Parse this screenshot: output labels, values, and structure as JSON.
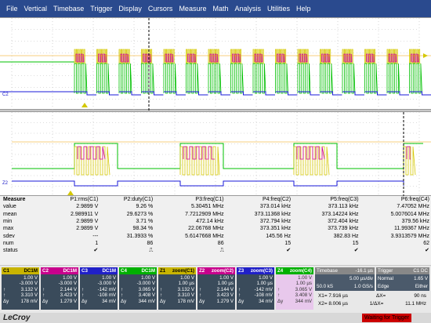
{
  "menu": [
    "File",
    "Vertical",
    "Timebase",
    "Trigger",
    "Display",
    "Cursors",
    "Measure",
    "Math",
    "Analysis",
    "Utilities",
    "Help"
  ],
  "colors": {
    "c1": "#d4c800",
    "c2": "#d0009a",
    "c3": "#1a1ad8",
    "c4": "#00c000",
    "menubar": "#2a4a8e",
    "status": "#cc0000"
  },
  "pane_markers": {
    "c2": "C2",
    "z2": "Z2"
  },
  "measure": {
    "header_label": "Measure",
    "columns": [
      "P1:rms(C1)",
      "P2:duty(C1)",
      "P3:freq(C1)",
      "P4:freq(C2)",
      "P5:freq(C3)",
      "P6:freq(C4)"
    ],
    "rows": [
      {
        "label": "value",
        "cells": [
          "2.9899 V",
          "9.26 %",
          "5.30451 MHz",
          "373.014 kHz",
          "373.113 kHz",
          "7.47052 MHz"
        ]
      },
      {
        "label": "mean",
        "cells": [
          "2.989911 V",
          "29.6273 %",
          "7.7212909 MHz",
          "373.11368 kHz",
          "373.14224 kHz",
          "5.0076014 MHz"
        ]
      },
      {
        "label": "min",
        "cells": [
          "2.9899 V",
          "3.71 %",
          "472.14 kHz",
          "372.794 kHz",
          "372.404 kHz",
          "379.56 kHz"
        ]
      },
      {
        "label": "max",
        "cells": [
          "2.9899 V",
          "98.34 %",
          "22.06768 MHz",
          "373.351 kHz",
          "373.739 kHz",
          "11.99367 MHz"
        ]
      },
      {
        "label": "sdev",
        "cells": [
          "---",
          "31.3933 %",
          "5.6147668 MHz",
          "145.56 Hz",
          "382.83 Hz",
          "3.9313579 MHz"
        ]
      },
      {
        "label": "num",
        "cells": [
          "1",
          "86",
          "86",
          "15",
          "15",
          "62"
        ]
      },
      {
        "label": "status",
        "cells": [
          "✔",
          "⎍",
          "⎍",
          "✔",
          "✔",
          "✔"
        ]
      }
    ]
  },
  "channels": [
    {
      "name": "C1",
      "tag": "DC1M",
      "head_color": "#c8b400",
      "rows": [
        "1.00 V",
        "-3.000 V",
        "3.132 V",
        "3.310 V",
        "178 mV"
      ],
      "row_labels": [
        "",
        "",
        "↑",
        "↑",
        "Δy"
      ]
    },
    {
      "name": "C2",
      "tag": "DC1M",
      "head_color": "#c8008c",
      "rows": [
        "1.00 V",
        "-3.000 V",
        "2.144 V",
        "3.423 V",
        "1.279 V"
      ],
      "row_labels": [
        "",
        "",
        "↑",
        "↑",
        "Δy"
      ]
    },
    {
      "name": "C3",
      "tag": "DC1M",
      "head_color": "#2020c8",
      "rows": [
        "1.00 V",
        "-3.000 V",
        "-142 mV",
        "-108 mV",
        "34 mV"
      ],
      "row_labels": [
        "",
        "",
        "↑",
        "↑",
        "Δy"
      ]
    },
    {
      "name": "C4",
      "tag": "DC1M",
      "head_color": "#00b000",
      "rows": [
        "1.00 V",
        "-3.000 V",
        "3.065 V",
        "3.408 V",
        "344 mV"
      ],
      "row_labels": [
        "",
        "",
        "↑",
        "↑",
        "Δy"
      ]
    },
    {
      "name": "Z1",
      "tag": "zoom(C1)",
      "head_color": "#c8b400",
      "rows": [
        "1.00 V",
        "1.00 µs",
        "3.132 V",
        "3.310 V",
        "178 mV"
      ],
      "row_labels": [
        "",
        "",
        "↑",
        "↑",
        "Δy"
      ]
    },
    {
      "name": "Z2",
      "tag": "zoom(C2)",
      "head_color": "#c8008c",
      "rows": [
        "1.00 V",
        "1.00 µs",
        "2.144 V",
        "3.423 V",
        "1.279 V"
      ],
      "row_labels": [
        "",
        "",
        "↑",
        "↑",
        "Δy"
      ]
    },
    {
      "name": "Z3",
      "tag": "zoom(C3)",
      "head_color": "#2020c8",
      "rows": [
        "1.00 V",
        "1.00 µs",
        "-142 mV",
        "-108 mV",
        "34 mV"
      ],
      "row_labels": [
        "",
        "",
        "↑",
        "↑",
        "Δy"
      ]
    },
    {
      "name": "Z4",
      "tag": "zoom(C4)",
      "head_color": "#00b000",
      "rows": [
        "1.00 V",
        "1.00 µs",
        "3.065 V",
        "3.408 V",
        "344 mV"
      ],
      "row_labels": [
        "",
        "",
        "↑",
        "↑",
        "Δy"
      ]
    }
  ],
  "timebase": {
    "label": "Timebase",
    "delay": "-16.1 µs",
    "div": "5.00 µs/div",
    "samples": "50.0 kS",
    "rate": "1.0 GS/s"
  },
  "trigger": {
    "label": "Trigger",
    "tag": "C1 DC",
    "mode": "Normal",
    "level": "1.65 V",
    "type": "Edge",
    "slope": "Either"
  },
  "cursors": {
    "x1": "X1= 7.916 µs",
    "dx": "ΔX=",
    "dx_val": "90 ns",
    "x2": "X2= 8.006 µs",
    "inv": "1/ΔX=",
    "inv_val": "11.1 MHz"
  },
  "footer": {
    "logo": "LeCroy",
    "status": "Waiting for Trigger"
  }
}
